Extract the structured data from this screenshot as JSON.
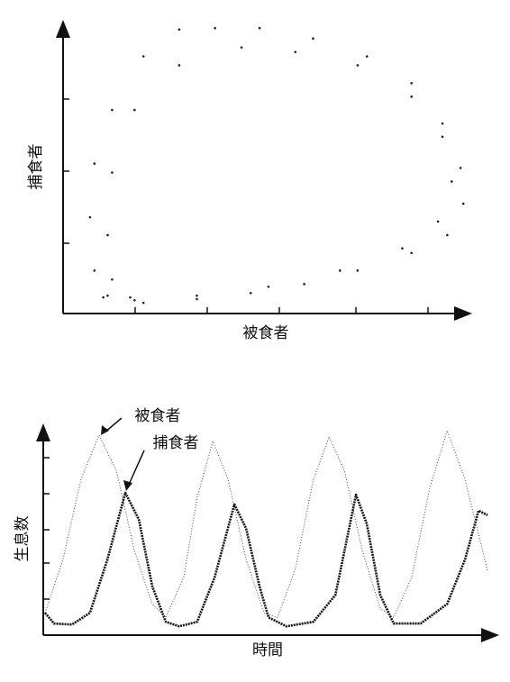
{
  "chart_data": [
    {
      "type": "scatter",
      "xlabel": "被食者",
      "ylabel": "捕食者",
      "xlim": [
        0,
        100
      ],
      "ylim": [
        0,
        100
      ],
      "series": [
        {
          "color": "#222222",
          "x": [
            10,
            20,
            33.3,
            46.7,
            60,
            73.3,
            86.7,
            95.6,
            99.6,
            98.9,
            94.4,
            86.7,
            75.6,
            62.2,
            48.9,
            37.8,
            28.9,
            20,
            12.2,
            7.8,
            6.7,
            7.8,
            11.1,
            17.8,
            33.3,
            51.1,
            68.9,
            84.4,
            93.3,
            96.7,
            94.4,
            86.7,
            73.3,
            57.8,
            44.4,
            28.9,
            17.8,
            12.2,
            11.1,
            12.2,
            16.7
          ],
          "values": [
            5.6,
            3.7,
            5,
            7.1,
            10.2,
            14.9,
            21,
            27.2,
            38.1,
            50.5,
            65.9,
            79.9,
            89.2,
            95.4,
            99,
            99,
            98.5,
            89.2,
            70.6,
            52,
            33.4,
            14.9,
            6.2,
            4.6,
            6.2,
            9.3,
            14.9,
            22.6,
            31.9,
            45.8,
            61.3,
            75.2,
            86.1,
            90.7,
            92.3,
            86.1,
            70.6,
            48.9,
            27.2,
            11.8,
            5.6
          ]
        }
      ]
    },
    {
      "type": "line",
      "xlabel": "時間",
      "ylabel": "生息数",
      "xlim": [
        0,
        100
      ],
      "ylim": [
        0,
        100
      ],
      "annotations": [
        {
          "text": "被食者"
        },
        {
          "text": "捕食者"
        }
      ],
      "series": [
        {
          "name": "被食者",
          "color": "#555555",
          "x": [
            0.4,
            4.4,
            8.4,
            12.4,
            16.3,
            20.3,
            24.3,
            27.3,
            31.3,
            34.3,
            37.8,
            41.2,
            45.2,
            49.2,
            52.2,
            56.2,
            60.2,
            63.7,
            67.1,
            71.1,
            75.1,
            78.1,
            82.1,
            86.1,
            90,
            94,
            99
          ],
          "values": [
            10.9,
            37,
            76.1,
            97.8,
            80.4,
            41.3,
            15.2,
            8.7,
            28.3,
            67.4,
            94.8,
            76.1,
            37,
            10.9,
            8.7,
            32.6,
            76.1,
            97,
            80.4,
            41.3,
            13,
            8.7,
            28.3,
            71.7,
            100,
            76.1,
            31.7
          ]
        },
        {
          "name": "捕食者",
          "color": "#111111",
          "x": [
            0.4,
            2.4,
            6.4,
            10.4,
            14.3,
            18.3,
            21.3,
            24.3,
            27.3,
            30.3,
            34.3,
            38.2,
            42.6,
            45.2,
            48.2,
            50.2,
            54.2,
            60.2,
            65.1,
            69.7,
            72.1,
            75.1,
            78.1,
            84.1,
            90,
            94,
            97,
            99
          ],
          "values": [
            10.9,
            5.7,
            5.2,
            10.9,
            37,
            69.6,
            56.5,
            23.9,
            6.5,
            4.3,
            6.5,
            28.3,
            63.9,
            52.2,
            23.9,
            8.7,
            4.3,
            6.5,
            19.6,
            68.7,
            54.3,
            19.6,
            5.7,
            5.7,
            15.2,
            37,
            60.9,
            58.7
          ]
        }
      ]
    }
  ]
}
